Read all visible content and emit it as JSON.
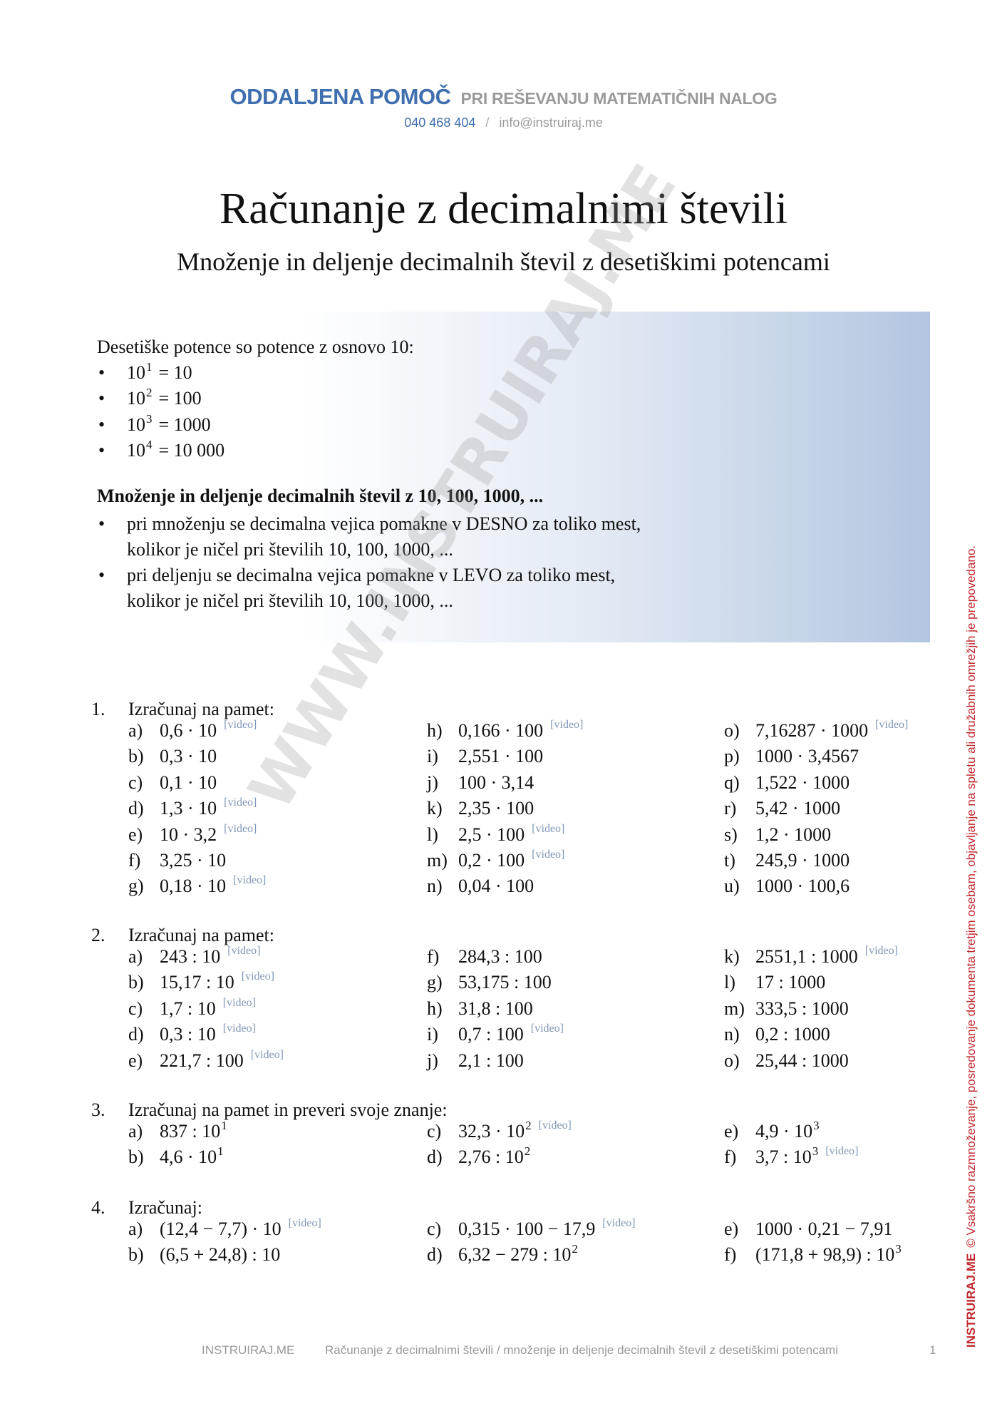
{
  "header": {
    "brand": "ODDALJENA POMOČ",
    "tagline": "PRI REŠEVANJU MATEMATIČNIH NALOG",
    "phone": "040 468 404",
    "separator": "/",
    "email": "info@instruiraj.me"
  },
  "title": "Računanje z decimalnimi števili",
  "subtitle": "Množenje in deljenje decimalnih števil z desetiškimi potencami",
  "info": {
    "intro": "Desetiške potence so potence z osnovo 10:",
    "powers": [
      {
        "base": "10",
        "exp": "1",
        "result": "= 10"
      },
      {
        "base": "10",
        "exp": "2",
        "result": "= 100"
      },
      {
        "base": "10",
        "exp": "3",
        "result": "= 1000"
      },
      {
        "base": "10",
        "exp": "4",
        "result": "= 10 000"
      }
    ],
    "heading": "Množenje in deljenje decimalnih števil z 10, 100, 1000, ...",
    "rules": [
      [
        "pri množenju se decimalna vejica pomakne v DESNO za toliko mest,",
        "kolikor je ničel pri številih 10, 100, 1000, ..."
      ],
      [
        "pri deljenju se decimalna vejica pomakne v LEVO za toliko mest,",
        "kolikor je ničel pri številih 10, 100, 1000, ..."
      ]
    ]
  },
  "exercises": [
    {
      "number": "1.",
      "title": "Izračunaj na pamet:",
      "columns": [
        [
          {
            "label": "a)",
            "expr": "0,6 · 10",
            "video": "[video]"
          },
          {
            "label": "b)",
            "expr": "0,3 · 10"
          },
          {
            "label": "c)",
            "expr": "0,1 · 10"
          },
          {
            "label": "d)",
            "expr": "1,3 · 10",
            "video": "[video]"
          },
          {
            "label": "e)",
            "expr": "10 · 3,2",
            "video": "[video]"
          },
          {
            "label": "f)",
            "expr": "3,25 · 10"
          },
          {
            "label": "g)",
            "expr": "0,18 · 10",
            "video": "[video]"
          }
        ],
        [
          {
            "label": "h)",
            "expr": "0,166 · 100",
            "video": "[video]"
          },
          {
            "label": "i)",
            "expr": "2,551 · 100"
          },
          {
            "label": "j)",
            "expr": "100 · 3,14"
          },
          {
            "label": "k)",
            "expr": "2,35 · 100"
          },
          {
            "label": "l)",
            "expr": "2,5 · 100",
            "video": "[video]"
          },
          {
            "label": "m)",
            "expr": "0,2 · 100",
            "video": "[video]"
          },
          {
            "label": "n)",
            "expr": "0,04 · 100"
          }
        ],
        [
          {
            "label": "o)",
            "expr": "7,16287 · 1000",
            "video": "[video]"
          },
          {
            "label": "p)",
            "expr": "1000 · 3,4567"
          },
          {
            "label": "q)",
            "expr": "1,522 · 1000"
          },
          {
            "label": "r)",
            "expr": "5,42 · 1000"
          },
          {
            "label": "s)",
            "expr": "1,2 · 1000"
          },
          {
            "label": "t)",
            "expr": "245,9 · 1000"
          },
          {
            "label": "u)",
            "expr": "1000 · 100,6"
          }
        ]
      ]
    },
    {
      "number": "2.",
      "title": "Izračunaj na pamet:",
      "columns": [
        [
          {
            "label": "a)",
            "expr": "243 : 10",
            "video": "[video]"
          },
          {
            "label": "b)",
            "expr": "15,17 : 10",
            "video": "[video]"
          },
          {
            "label": "c)",
            "expr": "1,7 : 10",
            "video": "[video]"
          },
          {
            "label": "d)",
            "expr": "0,3 : 10",
            "video": "[video]"
          },
          {
            "label": "e)",
            "expr": "221,7 : 100",
            "video": "[video]"
          }
        ],
        [
          {
            "label": "f)",
            "expr": "284,3 : 100"
          },
          {
            "label": "g)",
            "expr": "53,175 : 100"
          },
          {
            "label": "h)",
            "expr": "31,8 : 100"
          },
          {
            "label": "i)",
            "expr": "0,7 : 100",
            "video": "[video]"
          },
          {
            "label": "j)",
            "expr": "2,1 : 100"
          }
        ],
        [
          {
            "label": "k)",
            "expr": "2551,1 : 1000",
            "video": "[video]"
          },
          {
            "label": "l)",
            "expr": "17 : 1000"
          },
          {
            "label": "m)",
            "expr": "333,5 : 1000"
          },
          {
            "label": "n)",
            "expr": "0,2 : 1000"
          },
          {
            "label": "o)",
            "expr": "25,44 : 1000"
          }
        ]
      ]
    },
    {
      "number": "3.",
      "title": "Izračunaj na pamet in preveri svoje znanje:",
      "columns": [
        [
          {
            "label": "a)",
            "expr": "837 : 10",
            "sup": "1"
          },
          {
            "label": "b)",
            "expr": "4,6 · 10",
            "sup": "1"
          }
        ],
        [
          {
            "label": "c)",
            "expr": "32,3 · 10",
            "sup": "2",
            "video": "[video]"
          },
          {
            "label": "d)",
            "expr": "2,76 : 10",
            "sup": "2"
          }
        ],
        [
          {
            "label": "e)",
            "expr": "4,9 · 10",
            "sup": "3"
          },
          {
            "label": "f)",
            "expr": "3,7 : 10",
            "sup": "3",
            "video": "[video]"
          }
        ]
      ]
    },
    {
      "number": "4.",
      "title": "Izračunaj:",
      "columns": [
        [
          {
            "label": "a)",
            "expr": "(12,4 − 7,7) · 10",
            "video": "[video]"
          },
          {
            "label": "b)",
            "expr": "(6,5 + 24,8) : 10"
          }
        ],
        [
          {
            "label": "c)",
            "expr": "0,315 · 100 − 17,9",
            "video": "[video]"
          },
          {
            "label": "d)",
            "expr": "6,32 − 279 : 10",
            "sup": "2"
          }
        ],
        [
          {
            "label": "e)",
            "expr": "1000 · 0,21 − 7,91"
          },
          {
            "label": "f)",
            "expr": "(171,8 + 98,9) : 10",
            "sup": "3"
          }
        ]
      ]
    }
  ],
  "watermark": "WWW.INSTRUIRAJ.ME",
  "footer": {
    "left": "INSTRUIRAJ.ME",
    "center": "Računanje z decimalnimi števili / množenje in deljenje decimalnih števil z desetiškimi potencami",
    "page": "1"
  },
  "side_notice": {
    "brand": "INSTRUIRAJ.ME",
    "text": "© Vsakršno razmnoževanje, posredovanje dokumenta tretjim osebam, objavljanje na spletu ali družabnih omrežjih je prepovedano."
  }
}
